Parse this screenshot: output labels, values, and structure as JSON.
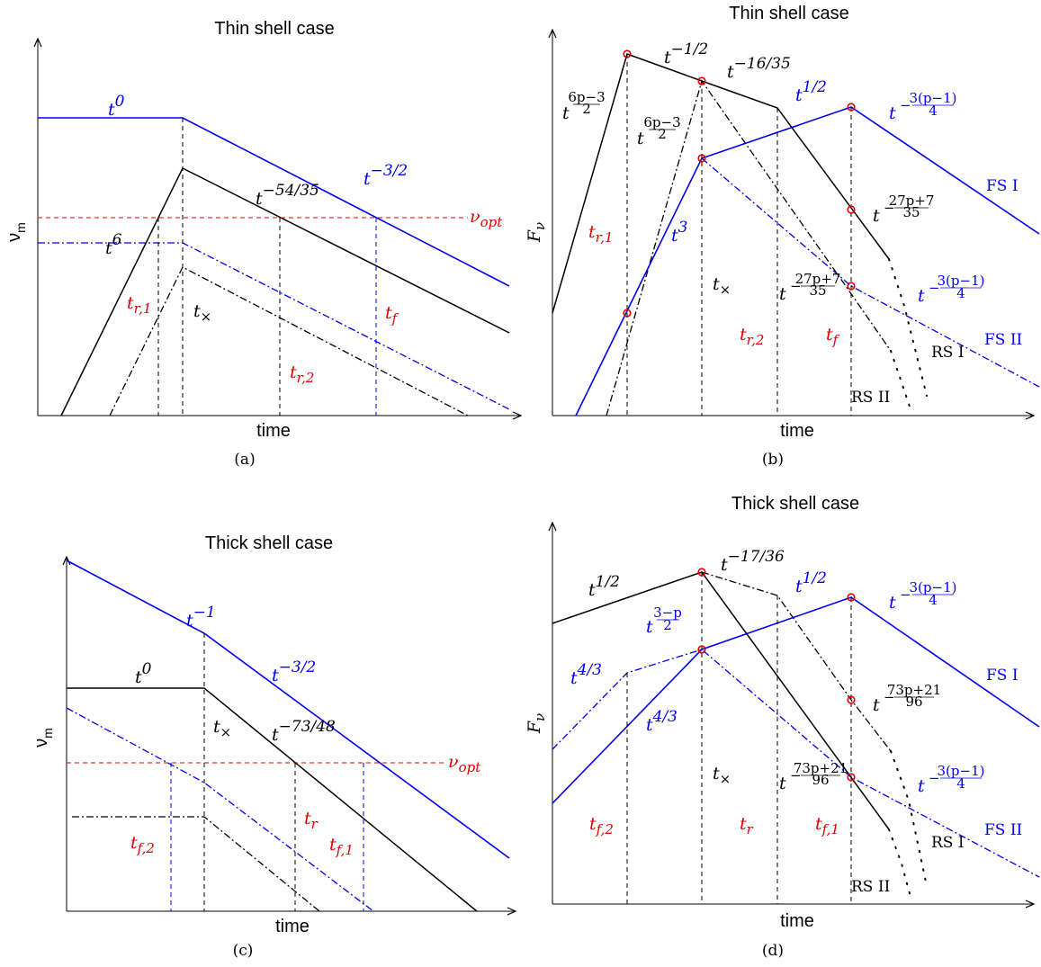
{
  "colors": {
    "black": "#000000",
    "blue": "#0000ee",
    "red": "#e00000"
  },
  "panels": {
    "a": {
      "title": "Thin shell case",
      "xlabel": "time",
      "ylabel": "ν",
      "ylabel_sub": "m",
      "caption": "(a)",
      "labels": {
        "t0": "t",
        "t0_exp": "0",
        "t6": "t",
        "t6_exp": "6",
        "t5435": "t",
        "t5435_exp": "−54/35",
        "t32": "t",
        "t32_exp": "−3/2",
        "nuopt": "ν",
        "nuopt_sub": "opt",
        "tr1": "t",
        "tr1_sub": "r,1",
        "tx": "t",
        "tx_sub": "×",
        "tf": "t",
        "tf_sub": "f",
        "tr2": "t",
        "tr2_sub": "r,2"
      }
    },
    "b": {
      "title": "Thin shell case",
      "xlabel": "time",
      "ylabel": "F",
      "ylabel_sub": "ν",
      "caption": "(b)",
      "labels": {
        "t12neg": "t",
        "t12neg_exp": "−1/2",
        "t1635": "t",
        "t1635_exp": "−16/35",
        "t12": "t",
        "t12_exp": "1/2",
        "tfs1": "t",
        "tfs1_exp": "−",
        "tfs1_num": "3(p−1)",
        "tfs1_den": "4",
        "t6p3a": "t",
        "t6p3a_num": "6p−3",
        "t6p3a_den": "2",
        "t6p3b": "t",
        "t6p3b_num": "6p−3",
        "t6p3b_den": "2",
        "t27a": "t",
        "t27a_exp": "−",
        "t27a_num": "27p+7",
        "t27a_den": "35",
        "t27b": "t",
        "t27b_exp": "−",
        "t27b_num": "27p+7",
        "t27b_den": "35",
        "tfs2": "t",
        "tfs2_exp": "−",
        "tfs2_num": "3(p−1)",
        "tfs2_den": "4",
        "t3": "t",
        "t3_exp": "3",
        "tr1": "t",
        "tr1_sub": "r,1",
        "tx": "t",
        "tx_sub": "×",
        "tr2": "t",
        "tr2_sub": "r,2",
        "tf": "t",
        "tf_sub": "f",
        "fs1": "FS I",
        "fs2": "FS II",
        "rs1": "RS I",
        "rs2": "RS II"
      }
    },
    "c": {
      "title": "Thick shell case",
      "xlabel": "time",
      "ylabel": "ν",
      "ylabel_sub": "m",
      "caption": "(c)",
      "labels": {
        "tm1": "t",
        "tm1_exp": "−1",
        "t0": "t",
        "t0_exp": "0",
        "t32": "t",
        "t32_exp": "−3/2",
        "tx": "t",
        "tx_sub": "×",
        "t7348": "t",
        "t7348_exp": "−73/48",
        "nuopt": "ν",
        "nuopt_sub": "opt",
        "tr": "t",
        "tr_sub": "r",
        "tf2": "t",
        "tf2_sub": "f,2",
        "tf1": "t",
        "tf1_sub": "f,1"
      }
    },
    "d": {
      "title": "Thick shell case",
      "xlabel": "time",
      "ylabel": "F",
      "ylabel_sub": "ν",
      "caption": "(d)",
      "labels": {
        "t12a": "t",
        "t12a_exp": "1/2",
        "t1736": "t",
        "t1736_exp": "−17/36",
        "t12b": "t",
        "t12b_exp": "1/2",
        "tfs1": "t",
        "tfs1_exp": "−",
        "tfs1_num": "3(p−1)",
        "tfs1_den": "4",
        "t3p": "t",
        "t3p_num": "3−p",
        "t3p_den": "2",
        "t43a": "t",
        "t43a_exp": "4/3",
        "t43b": "t",
        "t43b_exp": "4/3",
        "t73a": "t",
        "t73a_exp": "−",
        "t73a_num": "73p+21",
        "t73a_den": "96",
        "t73b": "t",
        "t73b_exp": "−",
        "t73b_num": "73p+21",
        "t73b_den": "96",
        "tfs2": "t",
        "tfs2_exp": "−",
        "tfs2_num": "3(p−1)",
        "tfs2_den": "4",
        "tx": "t",
        "tx_sub": "×",
        "tf2": "t",
        "tf2_sub": "f,2",
        "tr": "t",
        "tr_sub": "r",
        "tf1": "t",
        "tf1_sub": "f,1",
        "fs1": "FS I",
        "fs2": "FS II",
        "rs1": "RS I",
        "rs2": "RS II"
      }
    }
  }
}
